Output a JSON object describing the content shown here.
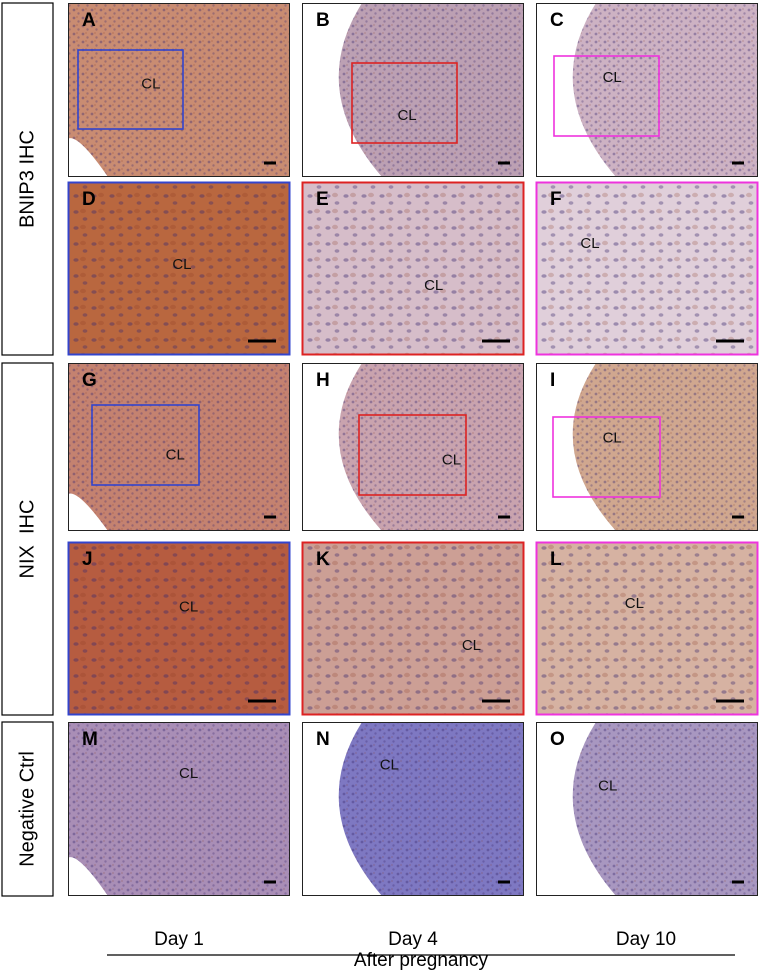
{
  "row_labels": [
    "BNIP3 IHC",
    "NIX  IHC",
    "Negative Ctrl"
  ],
  "panels": [
    {
      "letter": "A",
      "label": "CL"
    },
    {
      "letter": "B",
      "label": "CL"
    },
    {
      "letter": "C",
      "label": "CL"
    },
    {
      "letter": "D",
      "label": "CL"
    },
    {
      "letter": "E",
      "label": "CL"
    },
    {
      "letter": "F",
      "label": "CL"
    },
    {
      "letter": "G",
      "label": "CL"
    },
    {
      "letter": "H",
      "label": "CL"
    },
    {
      "letter": "I",
      "label": "CL"
    },
    {
      "letter": "J",
      "label": "CL"
    },
    {
      "letter": "K",
      "label": "CL"
    },
    {
      "letter": "L",
      "label": "CL"
    },
    {
      "letter": "M",
      "label": "CL"
    },
    {
      "letter": "N",
      "label": "CL"
    },
    {
      "letter": "O",
      "label": "CL"
    }
  ],
  "columns": [
    "Day 1",
    "Day 4",
    "Day 10"
  ],
  "footer": "After pregnancy"
}
